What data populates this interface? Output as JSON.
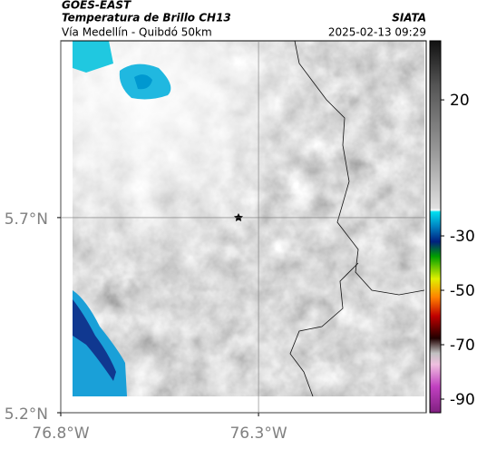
{
  "header": {
    "source": "GOES-EAST",
    "title": "Temperatura de Brillo CH13",
    "credit": "SIATA",
    "subtitle": "Vía Medellín - Quibdó 50km",
    "timestamp": "2025-02-13 09:29"
  },
  "map": {
    "xlim": [
      -76.8,
      -75.876
    ],
    "ylim": [
      5.2,
      6.153
    ],
    "xticks": [
      {
        "value": -76.8,
        "label": "76.8°W"
      },
      {
        "value": -76.3,
        "label": "76.3°W"
      }
    ],
    "yticks": [
      {
        "value": 5.7,
        "label": "5.7°N"
      },
      {
        "value": 5.2,
        "label": "5.2°N"
      }
    ],
    "grid": true
  },
  "colorbar": {
    "lim": [
      -95,
      41.7
    ],
    "ticks": [
      20,
      -30,
      -50,
      -70,
      -90
    ]
  }
}
